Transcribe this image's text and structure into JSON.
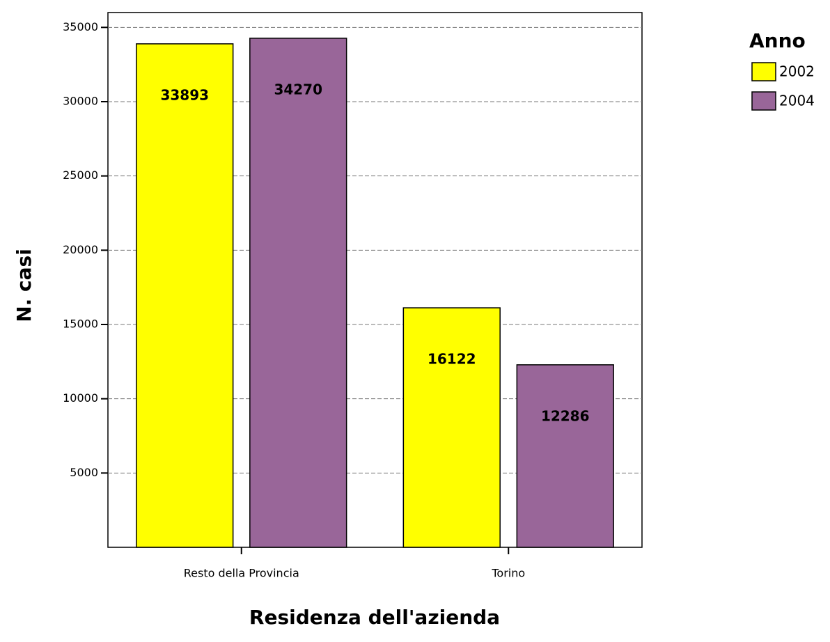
{
  "chart_data": {
    "type": "bar",
    "y_label": "N. casi",
    "x_label": "Residenza dell'azienda",
    "legend_title": "Anno",
    "legend": "right",
    "grid": true,
    "categories": [
      "Resto della Provincia",
      "Torino"
    ],
    "series": [
      {
        "name": "2002",
        "color": "#ffff00",
        "values": [
          33893,
          16122
        ]
      },
      {
        "name": "2004",
        "color": "#996699",
        "values": [
          34270,
          12286
        ]
      }
    ],
    "ylim": [
      0,
      36000
    ],
    "yticks": [
      5000,
      10000,
      15000,
      20000,
      25000,
      30000,
      35000
    ]
  }
}
